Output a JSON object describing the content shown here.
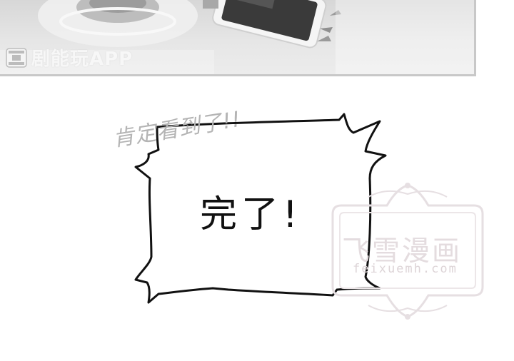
{
  "top_panel": {
    "app_label": "剧能玩APP",
    "icon": "film-strip-icon"
  },
  "comic_panel": {
    "sound_effect": "肯定看到了!!",
    "speech_bubble_text": "完了!"
  },
  "watermark": {
    "title": "飞雪漫画",
    "url": "feixuemh.com"
  },
  "colors": {
    "panel_bg": "#e4e4e4",
    "bubble_stroke": "#111111",
    "watermark": "#e4dcdf"
  }
}
